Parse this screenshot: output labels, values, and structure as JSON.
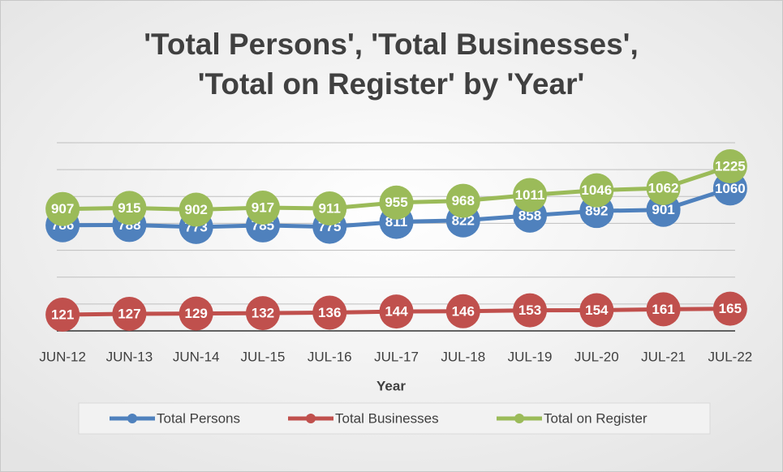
{
  "chart_data": {
    "type": "line",
    "title": [
      "'Total Persons', 'Total Businesses',",
      "'Total on Register' by 'Year'"
    ],
    "x_label": "Year",
    "categories": [
      "JUN-12",
      "JUN-13",
      "JUN-14",
      "JUL-15",
      "JUL-16",
      "JUL-17",
      "JUL-18",
      "JUL-19",
      "JUL-20",
      "JUL-21",
      "JUL-22"
    ],
    "series": [
      {
        "name": "Total Persons",
        "color": "#4f81bd",
        "values": [
          786,
          788,
          773,
          785,
          775,
          811,
          822,
          858,
          892,
          901,
          1060
        ]
      },
      {
        "name": "Total Businesses",
        "color": "#c0504d",
        "values": [
          121,
          127,
          129,
          132,
          136,
          144,
          146,
          153,
          154,
          161,
          165
        ]
      },
      {
        "name": "Total on Register",
        "color": "#9bbb59",
        "values": [
          907,
          915,
          902,
          917,
          911,
          955,
          968,
          1011,
          1046,
          1062,
          1225
        ]
      }
    ],
    "ylim": [
      0,
      1400
    ],
    "yticks": [
      0,
      200,
      400,
      600,
      800,
      1000,
      1200,
      1400
    ],
    "grid": true,
    "legend": "bottom"
  }
}
